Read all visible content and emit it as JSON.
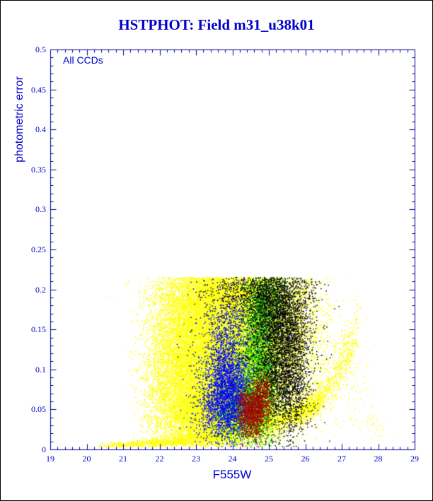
{
  "chart_data": {
    "type": "scatter",
    "title": "HSTPHOT: Field m31_u38k01",
    "annotation": "All CCDs",
    "xlabel": "F555W",
    "ylabel": "photometric error",
    "xlim": [
      19,
      29
    ],
    "ylim": [
      0,
      0.5
    ],
    "x_tick_values": [
      19,
      20,
      21,
      22,
      23,
      24,
      25,
      26,
      27,
      28,
      29
    ],
    "x_tick_labels": [
      "19",
      "20",
      "21",
      "22",
      "23",
      "24",
      "25",
      "26",
      "27",
      "28",
      "29"
    ],
    "y_tick_values": [
      0,
      0.05,
      0.1,
      0.15,
      0.2,
      0.25,
      0.3,
      0.35,
      0.4,
      0.45,
      0.5
    ],
    "y_tick_labels": [
      "0",
      "0.05",
      "0.1",
      "0.15",
      "0.2",
      "0.25",
      "0.3",
      "0.35",
      "0.4",
      "0.45",
      "0.5"
    ],
    "x_minor_step": 0.2,
    "y_minor_step": 0.01,
    "grid": false,
    "legend": "none",
    "axis_color": "#000099",
    "label_color": "#0000cc",
    "title_color": "#0000cc",
    "point_size": 1.5,
    "error_cap": 0.215,
    "y_floor": 0.003,
    "seed": 1234567,
    "series": [
      {
        "name": "yellow-points",
        "color": "#ffff00",
        "blobs": [
          {
            "x": 22.6,
            "y": 0.13,
            "sx": 0.45,
            "sy": 0.05,
            "n": 3500
          },
          {
            "x": 23.3,
            "y": 0.12,
            "sx": 0.5,
            "sy": 0.055,
            "n": 6000
          },
          {
            "x": 24.1,
            "y": 0.13,
            "sx": 0.55,
            "sy": 0.055,
            "n": 6000
          },
          {
            "x": 24.9,
            "y": 0.12,
            "sx": 0.5,
            "sy": 0.05,
            "n": 2500
          },
          {
            "x": 23.2,
            "y": 0.045,
            "sx": 0.6,
            "sy": 0.022,
            "n": 3500
          },
          {
            "x": 24.2,
            "y": 0.05,
            "sx": 0.6,
            "sy": 0.025,
            "n": 3000
          },
          {
            "x": 23.9,
            "y": 0.196,
            "sx": 0.9,
            "sy": 0.02,
            "n": 4000
          },
          {
            "x": 25.6,
            "y": 0.15,
            "sx": 0.35,
            "sy": 0.05,
            "n": 1200
          },
          {
            "x": 26.25,
            "y": 0.13,
            "sx": 0.3,
            "sy": 0.055,
            "n": 400
          },
          {
            "x": 22.0,
            "y": 0.08,
            "sx": 0.3,
            "sy": 0.05,
            "n": 700
          },
          {
            "x": 27.0,
            "y": 0.09,
            "sx": 0.4,
            "sy": 0.04,
            "n": 150
          },
          {
            "x": 27.9,
            "y": 0.028,
            "sx": 0.25,
            "sy": 0.012,
            "n": 35
          }
        ],
        "curves": [
          {
            "x_start": 20.3,
            "x_end": 26.45,
            "y_start": 0.004,
            "growth": 0.45,
            "jitter": 0.0035,
            "bias": 0.65,
            "n": 2600
          },
          {
            "x_start": 25.7,
            "x_end": 27.45,
            "y_start": 0.034,
            "growth": 0.86,
            "jitter": 0.009,
            "bias": 0.8,
            "n": 650
          }
        ]
      },
      {
        "name": "green-points",
        "color": "#00c000",
        "blobs": [
          {
            "x": 24.75,
            "y": 0.11,
            "sx": 0.28,
            "sy": 0.05,
            "n": 2200
          },
          {
            "x": 24.35,
            "y": 0.05,
            "sx": 0.4,
            "sy": 0.022,
            "n": 1400
          },
          {
            "x": 24.95,
            "y": 0.185,
            "sx": 0.3,
            "sy": 0.022,
            "n": 600
          },
          {
            "x": 23.9,
            "y": 0.09,
            "sx": 0.4,
            "sy": 0.04,
            "n": 300
          }
        ],
        "curves": []
      },
      {
        "name": "blue-points",
        "color": "#0000ff",
        "blobs": [
          {
            "x": 23.9,
            "y": 0.065,
            "sx": 0.33,
            "sy": 0.028,
            "n": 2000
          },
          {
            "x": 23.75,
            "y": 0.115,
            "sx": 0.3,
            "sy": 0.035,
            "n": 800
          },
          {
            "x": 24.05,
            "y": 0.16,
            "sx": 0.28,
            "sy": 0.035,
            "n": 300
          },
          {
            "x": 23.35,
            "y": 0.05,
            "sx": 0.3,
            "sy": 0.02,
            "n": 250
          }
        ],
        "curves": []
      },
      {
        "name": "black-points",
        "color": "#000000",
        "blobs": [
          {
            "x": 25.35,
            "y": 0.115,
            "sx": 0.38,
            "sy": 0.045,
            "n": 2600
          },
          {
            "x": 25.15,
            "y": 0.175,
            "sx": 0.45,
            "sy": 0.028,
            "n": 1400
          },
          {
            "x": 24.7,
            "y": 0.2,
            "sx": 0.7,
            "sy": 0.013,
            "n": 600
          },
          {
            "x": 25.6,
            "y": 0.07,
            "sx": 0.25,
            "sy": 0.03,
            "n": 500
          },
          {
            "x": 24.3,
            "y": 0.16,
            "sx": 0.8,
            "sy": 0.04,
            "n": 300
          },
          {
            "x": 25.9,
            "y": 0.16,
            "sx": 0.2,
            "sy": 0.04,
            "n": 200
          }
        ],
        "curves": []
      },
      {
        "name": "red-points",
        "color": "#aa0000",
        "blobs": [
          {
            "x": 24.55,
            "y": 0.047,
            "sx": 0.2,
            "sy": 0.016,
            "n": 1100
          },
          {
            "x": 24.85,
            "y": 0.068,
            "sx": 0.13,
            "sy": 0.014,
            "n": 300
          }
        ],
        "curves": []
      }
    ]
  }
}
